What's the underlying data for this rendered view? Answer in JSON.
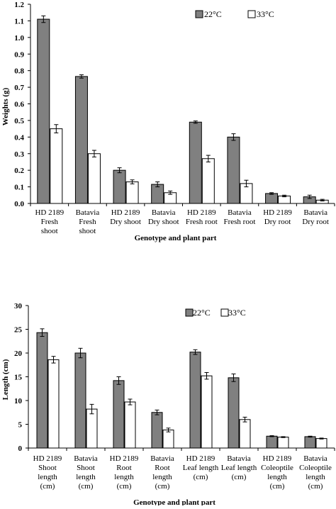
{
  "colors": {
    "c22": "#808080",
    "c33": "#ffffff",
    "stroke": "#000000"
  },
  "chart_data": [
    {
      "type": "bar",
      "xlabel": "Genotype and plant part",
      "ylabel": "Weights (g)",
      "ylim": [
        0,
        1.2
      ],
      "yticks": [
        "0.0",
        "0.1",
        "0.2",
        "0.3",
        "0.4",
        "0.5",
        "0.6",
        "0.7",
        "0.8",
        "0.9",
        "1.0",
        "1.1",
        "1.2"
      ],
      "legend_position": "top-right",
      "categories": [
        [
          "HD 2189",
          "Fresh",
          "shoot"
        ],
        [
          "Batavia",
          "Fresh",
          "shoot"
        ],
        [
          "HD 2189",
          "Dry shoot"
        ],
        [
          "Batavia",
          "Dry shoot"
        ],
        [
          "HD 2189",
          "Fresh root"
        ],
        [
          "Batavia",
          "Fresh root"
        ],
        [
          "HD 2189",
          "Dry root"
        ],
        [
          "Batavia",
          "Dry root"
        ]
      ],
      "series": [
        {
          "name": "22°C",
          "values": [
            1.11,
            0.765,
            0.2,
            0.115,
            0.49,
            0.4,
            0.06,
            0.04
          ],
          "errors": [
            0.02,
            0.01,
            0.015,
            0.015,
            0.007,
            0.02,
            0.005,
            0.01
          ]
        },
        {
          "name": "33°C",
          "values": [
            0.45,
            0.3,
            0.13,
            0.065,
            0.27,
            0.12,
            0.045,
            0.02
          ],
          "errors": [
            0.025,
            0.02,
            0.012,
            0.01,
            0.02,
            0.02,
            0.005,
            0.005
          ]
        }
      ]
    },
    {
      "type": "bar",
      "xlabel": "Genotype and plant part",
      "ylabel": "Length (cm)",
      "ylim": [
        0,
        30
      ],
      "yticks": [
        "0",
        "5",
        "10",
        "15",
        "20",
        "25",
        "30"
      ],
      "legend_position": "top-right",
      "categories": [
        [
          "HD 2189",
          "Shoot",
          "length",
          "(cm)"
        ],
        [
          "Batavia",
          "Shoot",
          "length",
          "(cm)"
        ],
        [
          "HD 2189",
          "Root",
          "length",
          "(cm)"
        ],
        [
          "Batavia",
          "Root",
          "length",
          "(cm)"
        ],
        [
          "HD 2189",
          "Leaf length",
          "(cm)"
        ],
        [
          "Batavia",
          "Leaf length",
          "(cm)"
        ],
        [
          "HD 2189",
          "Coleoptile",
          "length",
          "(cm)"
        ],
        [
          "Batavia",
          "Coleoptile",
          "length",
          "(cm)"
        ]
      ],
      "series": [
        {
          "name": "22°C",
          "values": [
            24.3,
            20.0,
            14.2,
            7.5,
            20.2,
            14.8,
            2.5,
            2.4
          ],
          "errors": [
            0.8,
            1.0,
            0.8,
            0.5,
            0.5,
            0.8,
            0.1,
            0.1
          ]
        },
        {
          "name": "33°C",
          "values": [
            18.6,
            8.2,
            9.7,
            3.8,
            15.2,
            6.0,
            2.3,
            2.0
          ],
          "errors": [
            0.7,
            1.0,
            0.6,
            0.4,
            0.7,
            0.5,
            0.1,
            0.1
          ]
        }
      ]
    }
  ]
}
